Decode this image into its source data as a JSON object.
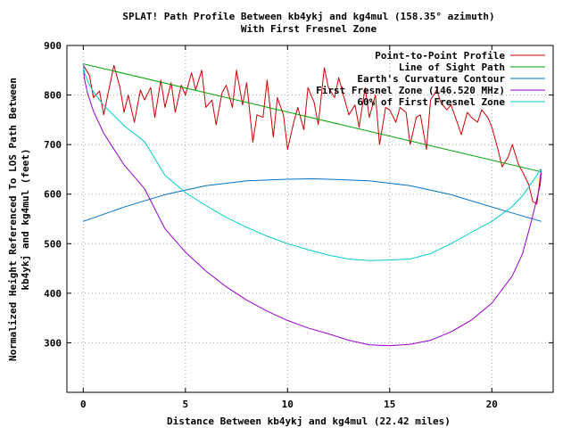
{
  "chart_data": {
    "type": "line",
    "title_lines": [
      "SPLAT! Path Profile Between kb4ykj and kg4mul (158.35° azimuth)",
      "With First Fresnel Zone"
    ],
    "xlabel": "Distance Between kb4ykj and kg4mul (22.42 miles)",
    "ylabel_lines": [
      "Normalized Height Referenced To LOS Path Between",
      "kb4ykj and kg4mul (feet)"
    ],
    "xlim": [
      -0.8,
      23.0
    ],
    "ylim": [
      200,
      900
    ],
    "xticks": [
      0,
      5,
      10,
      15,
      20
    ],
    "yticks": [
      300,
      400,
      500,
      600,
      700,
      800,
      900
    ],
    "grid": true,
    "legend_position": "top-right",
    "series": [
      {
        "name": "Point-to-Point Profile",
        "color": "#cc0000",
        "x": [
          0,
          0.3,
          0.5,
          0.8,
          1.0,
          1.2,
          1.5,
          1.8,
          2.0,
          2.2,
          2.5,
          2.8,
          3.0,
          3.3,
          3.5,
          3.8,
          4.0,
          4.3,
          4.5,
          4.8,
          5.0,
          5.3,
          5.5,
          5.8,
          6.0,
          6.3,
          6.5,
          6.8,
          7.0,
          7.3,
          7.5,
          7.8,
          8.0,
          8.3,
          8.5,
          8.8,
          9.0,
          9.3,
          9.5,
          9.8,
          10.0,
          10.3,
          10.5,
          10.8,
          11.0,
          11.3,
          11.5,
          11.8,
          12.0,
          12.3,
          12.5,
          12.8,
          13.0,
          13.3,
          13.5,
          13.8,
          14.0,
          14.3,
          14.5,
          14.8,
          15.0,
          15.3,
          15.5,
          15.8,
          16.0,
          16.3,
          16.5,
          16.8,
          17.0,
          17.3,
          17.5,
          17.8,
          18.0,
          18.3,
          18.5,
          18.8,
          19.0,
          19.3,
          19.5,
          19.8,
          20.0,
          20.3,
          20.5,
          20.8,
          21.0,
          21.3,
          21.5,
          21.8,
          22.0,
          22.2,
          22.42
        ],
        "values": [
          860,
          840,
          795,
          808,
          760,
          800,
          860,
          815,
          765,
          800,
          745,
          810,
          790,
          815,
          755,
          830,
          775,
          825,
          765,
          820,
          800,
          845,
          810,
          850,
          775,
          790,
          740,
          805,
          820,
          775,
          850,
          780,
          825,
          705,
          760,
          755,
          830,
          715,
          795,
          760,
          690,
          745,
          775,
          730,
          815,
          785,
          740,
          855,
          815,
          795,
          835,
          790,
          760,
          780,
          735,
          815,
          755,
          800,
          700,
          775,
          770,
          745,
          775,
          765,
          700,
          755,
          760,
          690,
          790,
          810,
          785,
          770,
          780,
          745,
          720,
          765,
          755,
          745,
          770,
          755,
          735,
          690,
          655,
          675,
          700,
          660,
          645,
          620,
          585,
          580,
          650
        ]
      },
      {
        "name": "Line of Sight Path",
        "color": "#00a000",
        "x": [
          0,
          22.42
        ],
        "values": [
          863,
          645
        ]
      },
      {
        "name": "Earth's Curvature Contour",
        "color": "#0070c0",
        "x": [
          0,
          2,
          4,
          6,
          8,
          10,
          11.21,
          12,
          14,
          16,
          18,
          20,
          22.42
        ],
        "values": [
          545,
          574,
          599,
          617,
          627,
          630,
          631,
          630,
          627,
          617,
          599,
          574,
          545
        ]
      },
      {
        "name": "First Fresnel Zone (146.520 MHz)",
        "color": "#9900cc",
        "x": [
          0,
          0.05,
          0.2,
          0.5,
          1,
          2,
          3,
          4,
          5,
          6,
          7,
          8,
          9,
          10,
          11,
          12,
          13,
          14,
          15,
          16,
          17,
          18,
          19,
          20,
          21,
          21.5,
          21.9,
          22.2,
          22.37,
          22.42
        ],
        "values": [
          863,
          834,
          805,
          767,
          723,
          659,
          611,
          530,
          483,
          445,
          413,
          386,
          364,
          345,
          330,
          318,
          305,
          296,
          294,
          297,
          305,
          322,
          346,
          380,
          435,
          480,
          540,
          590,
          620,
          645
        ]
      },
      {
        "name": "60% of First Fresnel Zone",
        "color": "#00cccc",
        "x": [
          0,
          0.05,
          0.2,
          0.5,
          1,
          2,
          3,
          4,
          5,
          6,
          7,
          8,
          9,
          10,
          11,
          12,
          13,
          14,
          15,
          16,
          17,
          18,
          19,
          20,
          21,
          21.5,
          21.9,
          22.2,
          22.37,
          22.42
        ],
        "values": [
          863,
          846,
          829,
          806,
          779,
          738,
          706,
          638,
          603,
          577,
          553,
          533,
          515,
          500,
          488,
          477,
          469,
          466,
          467,
          469,
          480,
          500,
          523,
          545,
          575,
          597,
          620,
          638,
          650,
          645
        ]
      }
    ]
  }
}
